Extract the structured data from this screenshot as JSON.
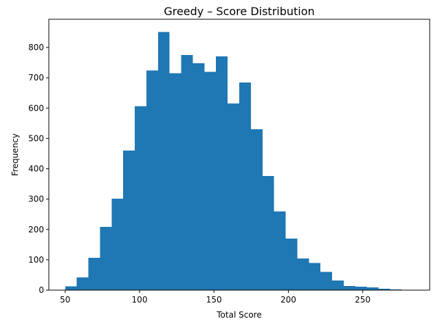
{
  "chart_data": {
    "type": "bar",
    "title": "Greedy – Score Distribution",
    "xlabel": "Total Score",
    "ylabel": "Frequency",
    "bar_color": "#1f77b4",
    "bins": [
      {
        "x0": 50.0,
        "x1": 57.8,
        "count": 13
      },
      {
        "x0": 57.8,
        "x1": 65.6,
        "count": 42
      },
      {
        "x0": 65.6,
        "x1": 73.4,
        "count": 107
      },
      {
        "x0": 73.4,
        "x1": 81.2,
        "count": 209
      },
      {
        "x0": 81.2,
        "x1": 89.0,
        "count": 302
      },
      {
        "x0": 89.0,
        "x1": 96.8,
        "count": 460
      },
      {
        "x0": 96.8,
        "x1": 104.6,
        "count": 606
      },
      {
        "x0": 104.6,
        "x1": 112.4,
        "count": 724
      },
      {
        "x0": 112.4,
        "x1": 120.2,
        "count": 851
      },
      {
        "x0": 120.2,
        "x1": 128.0,
        "count": 715
      },
      {
        "x0": 128.0,
        "x1": 135.8,
        "count": 775
      },
      {
        "x0": 135.8,
        "x1": 143.6,
        "count": 748
      },
      {
        "x0": 143.6,
        "x1": 151.4,
        "count": 720
      },
      {
        "x0": 151.4,
        "x1": 159.2,
        "count": 771
      },
      {
        "x0": 159.2,
        "x1": 167.0,
        "count": 615
      },
      {
        "x0": 167.0,
        "x1": 174.8,
        "count": 685
      },
      {
        "x0": 174.8,
        "x1": 182.6,
        "count": 530
      },
      {
        "x0": 182.6,
        "x1": 190.4,
        "count": 376
      },
      {
        "x0": 190.4,
        "x1": 198.2,
        "count": 260
      },
      {
        "x0": 198.2,
        "x1": 206.0,
        "count": 170
      },
      {
        "x0": 206.0,
        "x1": 213.8,
        "count": 104
      },
      {
        "x0": 213.8,
        "x1": 221.6,
        "count": 90
      },
      {
        "x0": 221.6,
        "x1": 229.4,
        "count": 60
      },
      {
        "x0": 229.4,
        "x1": 237.2,
        "count": 32
      },
      {
        "x0": 237.2,
        "x1": 245.0,
        "count": 14
      },
      {
        "x0": 245.0,
        "x1": 252.8,
        "count": 11
      },
      {
        "x0": 252.8,
        "x1": 260.6,
        "count": 9
      },
      {
        "x0": 260.6,
        "x1": 268.4,
        "count": 4
      },
      {
        "x0": 268.4,
        "x1": 276.2,
        "count": 2
      },
      {
        "x0": 276.2,
        "x1": 284.0,
        "count": 1
      }
    ],
    "xlim": [
      39.0,
      295.0
    ],
    "ylim": [
      0,
      893
    ],
    "xticks": [
      50,
      100,
      150,
      200,
      250
    ],
    "yticks": [
      0,
      100,
      200,
      300,
      400,
      500,
      600,
      700,
      800
    ],
    "grid": false,
    "legend": "none"
  }
}
